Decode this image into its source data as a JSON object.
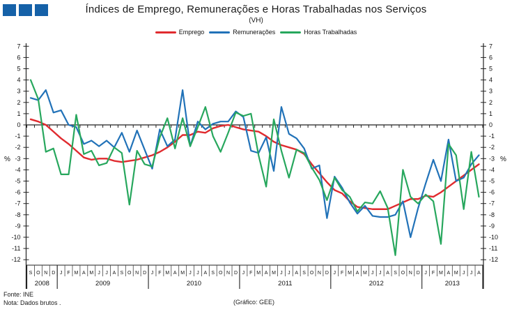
{
  "title": "Índices de Emprego, Remunerações e Horas Trabalhadas nos Serviços",
  "subtitle": "(VH)",
  "logo_color": "#1561a8",
  "footer": {
    "fonte": "Fonte: INE",
    "nota": "Nota: Dados brutos .",
    "grafico": "(Gráfico: GEE)"
  },
  "chart_data": {
    "type": "line",
    "title": "Índices de Emprego, Remunerações e Horas Trabalhadas nos Serviços (VH)",
    "ylabel": "%",
    "ylim": [
      -12,
      7
    ],
    "ytick_step": 1,
    "grid": false,
    "legend_position": "top",
    "x_years": [
      {
        "label": "2008",
        "months": [
          "S",
          "O",
          "N",
          "D"
        ]
      },
      {
        "label": "2009",
        "months": [
          "J",
          "F",
          "M",
          "A",
          "M",
          "J",
          "J",
          "A",
          "S",
          "O",
          "N",
          "D"
        ]
      },
      {
        "label": "2010",
        "months": [
          "J",
          "F",
          "M",
          "A",
          "M",
          "J",
          "J",
          "A",
          "S",
          "O",
          "N",
          "D"
        ]
      },
      {
        "label": "2011",
        "months": [
          "J",
          "F",
          "M",
          "A",
          "M",
          "J",
          "J",
          "A",
          "S",
          "O",
          "N",
          "D"
        ]
      },
      {
        "label": "2012",
        "months": [
          "J",
          "F",
          "M",
          "A",
          "M",
          "J",
          "J",
          "A",
          "S",
          "O",
          "N",
          "D"
        ]
      },
      {
        "label": "2013",
        "months": [
          "J",
          "F",
          "M",
          "A",
          "M",
          "J",
          "J",
          "A"
        ]
      }
    ],
    "series": [
      {
        "name": "Emprego",
        "color": "#e02b2f",
        "width": 2.4,
        "values": [
          0.5,
          0.3,
          0.0,
          -0.6,
          -1.2,
          -1.7,
          -2.3,
          -2.9,
          -3.1,
          -3.0,
          -3.0,
          -3.2,
          -3.3,
          -3.2,
          -3.1,
          -2.9,
          -2.7,
          -2.4,
          -2.0,
          -1.5,
          -0.9,
          -0.9,
          -0.6,
          -0.7,
          -0.3,
          -0.1,
          0.0,
          -0.2,
          -0.4,
          -0.5,
          -0.6,
          -1.0,
          -1.5,
          -1.8,
          -2.0,
          -2.2,
          -2.6,
          -3.5,
          -4.3,
          -5.1,
          -5.8,
          -6.1,
          -6.8,
          -7.3,
          -7.4,
          -7.5,
          -7.5,
          -7.5,
          -7.2,
          -6.9,
          -6.6,
          -6.6,
          -6.3,
          -6.4,
          -6.0,
          -5.5,
          -5.0,
          -4.5,
          -4.0,
          -3.5
        ]
      },
      {
        "name": "Remunerações",
        "color": "#2172b8",
        "width": 2.2,
        "values": [
          2.4,
          2.2,
          3.1,
          1.1,
          1.3,
          0.0,
          -0.2,
          -1.7,
          -1.4,
          -1.9,
          -1.4,
          -2.0,
          -0.7,
          -2.4,
          -0.5,
          -2.2,
          -3.9,
          -0.4,
          -1.9,
          -1.3,
          3.1,
          -1.9,
          0.3,
          -0.4,
          0.1,
          0.3,
          0.3,
          1.2,
          0.7,
          -2.3,
          -2.5,
          -1.1,
          -4.1,
          1.6,
          -0.8,
          -1.2,
          -2.1,
          -3.9,
          -3.6,
          -8.3,
          -4.6,
          -5.6,
          -6.9,
          -7.9,
          -7.2,
          -8.1,
          -8.2,
          -8.2,
          -8.0,
          -6.8,
          -10.0,
          -7.4,
          -5.2,
          -3.1,
          -5.0,
          -1.3,
          -5.0,
          -4.7,
          -3.5,
          -2.7
        ]
      },
      {
        "name": "Horas Trabalhadas",
        "color": "#27a75d",
        "width": 2.2,
        "values": [
          4.0,
          2.3,
          -2.4,
          -2.1,
          -4.4,
          -4.4,
          0.9,
          -2.6,
          -2.3,
          -3.6,
          -3.4,
          -2.0,
          -2.5,
          -7.1,
          -2.3,
          -3.5,
          -3.7,
          -1.1,
          0.6,
          -2.1,
          0.6,
          -1.9,
          -0.2,
          1.6,
          -1.0,
          -2.4,
          -0.7,
          1.1,
          0.8,
          1.0,
          -2.7,
          -5.5,
          0.5,
          -2.3,
          -4.7,
          -2.2,
          -2.5,
          -3.8,
          -4.9,
          -6.7,
          -4.7,
          -5.8,
          -6.4,
          -7.7,
          -6.9,
          -7.0,
          -5.9,
          -7.4,
          -11.6,
          -4.0,
          -6.4,
          -7.0,
          -6.2,
          -6.8,
          -10.6,
          -1.7,
          -2.7,
          -7.5,
          -2.4,
          -6.4
        ]
      }
    ]
  }
}
